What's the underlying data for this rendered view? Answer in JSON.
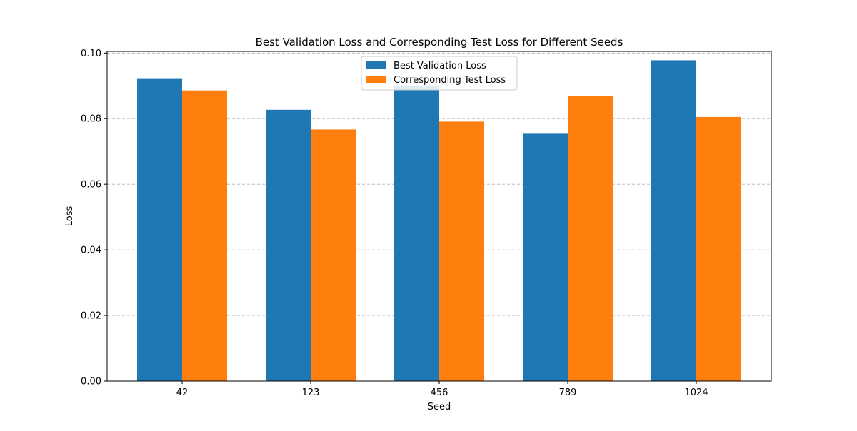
{
  "chart_data": {
    "type": "bar",
    "title": "Best Validation Loss and Corresponding Test Loss for Different Seeds",
    "xlabel": "Seed",
    "ylabel": "Loss",
    "categories": [
      "42",
      "123",
      "456",
      "789",
      "1024"
    ],
    "series": [
      {
        "name": "Best Validation Loss",
        "color": "#1f77b4",
        "values": [
          0.0921,
          0.0827,
          0.0901,
          0.0754,
          0.0978
        ]
      },
      {
        "name": "Corresponding Test Loss",
        "color": "#ff7f0e",
        "values": [
          0.0886,
          0.0767,
          0.0791,
          0.087,
          0.0805
        ]
      }
    ],
    "ylim": [
      0,
      0.1005
    ],
    "yticks": [
      0.0,
      0.02,
      0.04,
      0.06,
      0.08,
      0.1
    ],
    "ytick_labels": [
      "0.00",
      "0.02",
      "0.04",
      "0.06",
      "0.08",
      "0.10"
    ],
    "grid": {
      "axis": "y",
      "style": "dashed",
      "color": "#b0b0b0"
    },
    "legend_position": "upper center"
  }
}
